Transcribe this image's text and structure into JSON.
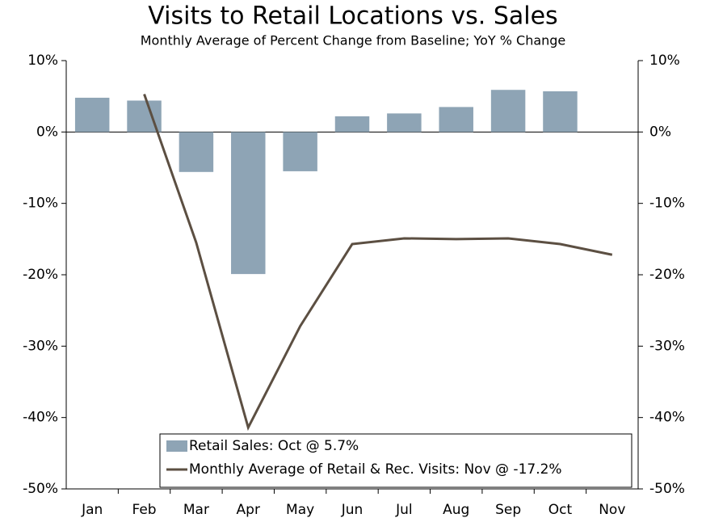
{
  "chart_data": {
    "type": "bar",
    "title": "Visits to Retail Locations vs. Sales",
    "subtitle": "Monthly Average of Percent Change from Baseline; YoY % Change",
    "categories": [
      "Jan",
      "Feb",
      "Mar",
      "Apr",
      "May",
      "Jun",
      "Jul",
      "Aug",
      "Sep",
      "Oct",
      "Nov"
    ],
    "series": [
      {
        "name": "Retail Sales: Oct @ 5.7%",
        "type": "bar",
        "color": "#8ea4b5",
        "values": [
          4.8,
          4.4,
          -5.6,
          -19.9,
          -5.5,
          2.2,
          2.6,
          3.5,
          5.9,
          5.7,
          null
        ]
      },
      {
        "name": "Monthly Average of Retail & Rec. Visits: Nov @ -17.2%",
        "type": "line",
        "color": "#5c4f42",
        "values": [
          null,
          5.3,
          -15.5,
          -41.4,
          -27.2,
          -15.7,
          -14.9,
          -15.0,
          -14.9,
          -15.7,
          -17.2
        ]
      }
    ],
    "ylim": [
      -50,
      10
    ],
    "yticks": [
      {
        "value": -50,
        "label": "-50%"
      },
      {
        "value": -40,
        "label": "-40%"
      },
      {
        "value": -30,
        "label": "-30%"
      },
      {
        "value": -20,
        "label": "-20%"
      },
      {
        "value": -10,
        "label": "-10%"
      },
      {
        "value": 0,
        "label": "0%"
      },
      {
        "value": 10,
        "label": "10%"
      }
    ],
    "y2lim": [
      -50,
      10
    ],
    "y2ticks": [
      {
        "value": -50,
        "label": "-50%"
      },
      {
        "value": -40,
        "label": "-40%"
      },
      {
        "value": -30,
        "label": "-30%"
      },
      {
        "value": -20,
        "label": "-20%"
      },
      {
        "value": -10,
        "label": "-10%"
      },
      {
        "value": 0,
        "label": "0%"
      },
      {
        "value": 10,
        "label": "10%"
      }
    ],
    "grid": false,
    "legend": "lower center"
  }
}
